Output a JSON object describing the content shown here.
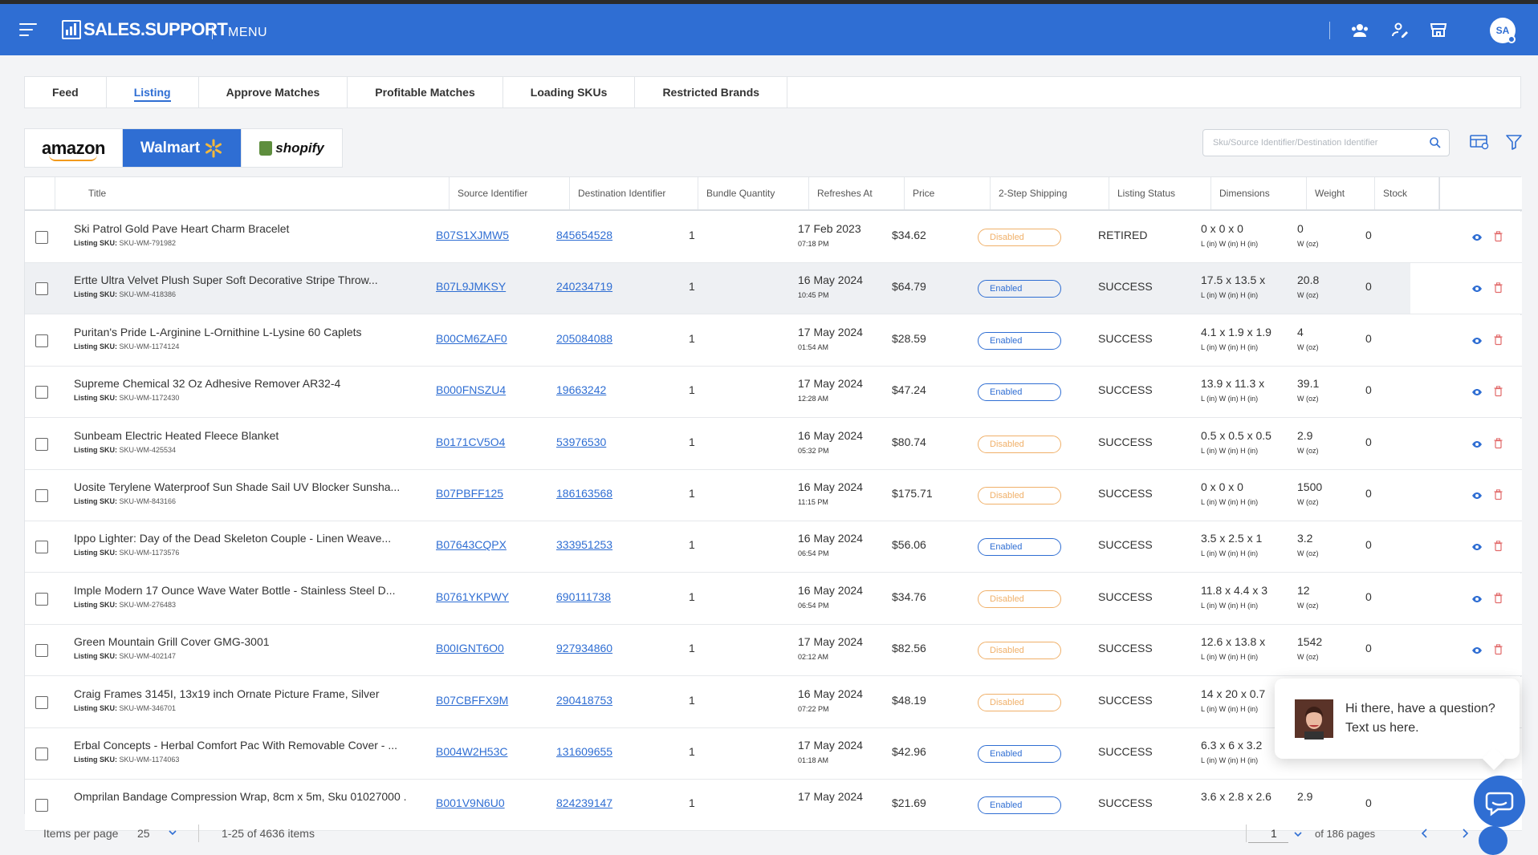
{
  "app": {
    "brand": "SALES.SUPPORT",
    "menu_label": "MENU",
    "user_initials": "SA"
  },
  "tabs": [
    "Feed",
    "Listing",
    "Approve Matches",
    "Profitable Matches",
    "Loading SKUs",
    "Restricted Brands"
  ],
  "active_tab": "Listing",
  "platforms": {
    "amazon": "amazon",
    "walmart": "Walmart",
    "shopify": "shopify",
    "active": "Walmart"
  },
  "search": {
    "placeholder": "Sku/Source Identifier/Destination Identifier"
  },
  "columns": [
    "Title",
    "Source Identifier",
    "Destination Identifier",
    "Bundle Quantity",
    "Refreshes At",
    "Price",
    "2-Step Shipping",
    "Listing Status",
    "Dimensions",
    "Weight",
    "Stock"
  ],
  "sku_prefix": "Listing SKU:",
  "dim_units": "L (in) W (in) H (in)",
  "weight_unit": "W (oz)",
  "rows": [
    {
      "title": "Ski Patrol Gold Pave Heart Charm Bracelet",
      "sku": "SKU-WM-791982",
      "source": "B07S1XJMW5",
      "dest": "845654528",
      "qty": "1",
      "date": "17 Feb 2023",
      "time": "07:18 PM",
      "price": "$34.62",
      "shipping": "Disabled",
      "status": "RETIRED",
      "dims": "0 x 0 x 0",
      "weight": "0",
      "stock": "0"
    },
    {
      "title": "Ertte Ultra Velvet Plush Super Soft Decorative Stripe Throw...",
      "sku": "SKU-WM-418386",
      "source": "B07L9JMKSY",
      "dest": "240234719",
      "qty": "1",
      "date": "16 May 2024",
      "time": "10:45 PM",
      "price": "$64.79",
      "shipping": "Enabled",
      "status": "SUCCESS",
      "dims": "17.5 x 13.5 x",
      "weight": "20.8",
      "stock": "0"
    },
    {
      "title": "Puritan's Pride L-Arginine L-Ornithine L-Lysine 60 Caplets",
      "sku": "SKU-WM-1174124",
      "source": "B00CM6ZAF0",
      "dest": "205084088",
      "qty": "1",
      "date": "17 May 2024",
      "time": "01:54 AM",
      "price": "$28.59",
      "shipping": "Enabled",
      "status": "SUCCESS",
      "dims": "4.1 x 1.9 x 1.9",
      "weight": "4",
      "stock": "0"
    },
    {
      "title": "Supreme Chemical 32 Oz Adhesive Remover AR32-4",
      "sku": "SKU-WM-1172430",
      "source": "B000FNSZU4",
      "dest": "19663242",
      "qty": "1",
      "date": "17 May 2024",
      "time": "12:28 AM",
      "price": "$47.24",
      "shipping": "Enabled",
      "status": "SUCCESS",
      "dims": "13.9 x 11.3 x",
      "weight": "39.1",
      "stock": "0"
    },
    {
      "title": "Sunbeam Electric Heated Fleece Blanket",
      "sku": "SKU-WM-425534",
      "source": "B0171CV5O4",
      "dest": "53976530",
      "qty": "1",
      "date": "16 May 2024",
      "time": "05:32 PM",
      "price": "$80.74",
      "shipping": "Disabled",
      "status": "SUCCESS",
      "dims": "0.5 x 0.5 x 0.5",
      "weight": "2.9",
      "stock": "0"
    },
    {
      "title": "Uosite Terylene Waterproof Sun Shade Sail UV Blocker Sunsha...",
      "sku": "SKU-WM-843166",
      "source": "B07PBFF125",
      "dest": "186163568",
      "qty": "1",
      "date": "16 May 2024",
      "time": "11:15 PM",
      "price": "$175.71",
      "shipping": "Disabled",
      "status": "SUCCESS",
      "dims": "0 x 0 x 0",
      "weight": "1500",
      "stock": "0"
    },
    {
      "title": "Ippo Lighter: Day of the Dead Skeleton Couple - Linen Weave...",
      "sku": "SKU-WM-1173576",
      "source": "B07643CQPX",
      "dest": "333951253",
      "qty": "1",
      "date": "16 May 2024",
      "time": "06:54 PM",
      "price": "$56.06",
      "shipping": "Enabled",
      "status": "SUCCESS",
      "dims": "3.5 x 2.5 x 1",
      "weight": "3.2",
      "stock": "0"
    },
    {
      "title": "Imple Modern 17 Ounce Wave Water Bottle - Stainless Steel D...",
      "sku": "SKU-WM-276483",
      "source": "B0761YKPWY",
      "dest": "690111738",
      "qty": "1",
      "date": "16 May 2024",
      "time": "06:54 PM",
      "price": "$34.76",
      "shipping": "Disabled",
      "status": "SUCCESS",
      "dims": "11.8 x 4.4 x 3",
      "weight": "12",
      "stock": "0"
    },
    {
      "title": "Green Mountain Grill Cover GMG-3001",
      "sku": "SKU-WM-402147",
      "source": "B00IGNT6O0",
      "dest": "927934860",
      "qty": "1",
      "date": "17 May 2024",
      "time": "02:12 AM",
      "price": "$82.56",
      "shipping": "Disabled",
      "status": "SUCCESS",
      "dims": "12.6 x 13.8 x",
      "weight": "1542",
      "stock": "0"
    },
    {
      "title": "Craig Frames 3145I, 13x19 inch Ornate Picture Frame, Silver",
      "sku": "SKU-WM-346701",
      "source": "B07CBFFX9M",
      "dest": "290418753",
      "qty": "1",
      "date": "16 May 2024",
      "time": "07:22 PM",
      "price": "$48.19",
      "shipping": "Disabled",
      "status": "SUCCESS",
      "dims": "14 x 20 x 0.7",
      "weight": "",
      "stock": ""
    },
    {
      "title": "Erbal Concepts - Herbal Comfort Pac With Removable Cover - ...",
      "sku": "SKU-WM-1174063",
      "source": "B004W2H53C",
      "dest": "131609655",
      "qty": "1",
      "date": "17 May 2024",
      "time": "01:18 AM",
      "price": "$42.96",
      "shipping": "Enabled",
      "status": "SUCCESS",
      "dims": "6.3 x 6 x 3.2",
      "weight": "",
      "stock": ""
    },
    {
      "title": "Omprilan Bandage Compression Wrap, 8cm x 5m, Sku 01027000 .",
      "sku": "",
      "source": "B001V9N6U0",
      "dest": "824239147",
      "qty": "1",
      "date": "17 May 2024",
      "time": "",
      "price": "$21.69",
      "shipping": "Enabled",
      "status": "SUCCESS",
      "dims": "3.6 x 2.8 x 2.6",
      "weight": "2.9",
      "stock": "0"
    }
  ],
  "footer": {
    "items_per_page_label": "Items per page",
    "items_per_page": "25",
    "range": "1-25 of 4636 items",
    "page": "1",
    "of_pages": "of 186 pages"
  },
  "chat": {
    "message": "Hi there, have a question? Text us here."
  },
  "colors": {
    "brand": "#2f6ed3",
    "enabled": "#2f6ed3",
    "disabled": "#f0b069",
    "delete": "#e26a6a"
  }
}
